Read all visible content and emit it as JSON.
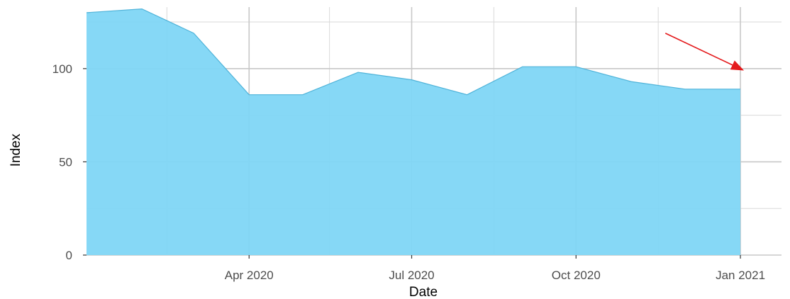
{
  "chart_data": {
    "type": "area",
    "title": "",
    "xlabel": "Date",
    "ylabel": "Index",
    "x_tick_labels": [
      "Apr 2020",
      "Jul 2020",
      "Oct 2020",
      "Jan 2021"
    ],
    "x_ticks": [
      "2020-04-01",
      "2020-07-01",
      "2020-10-01",
      "2021-01-01"
    ],
    "x_minor_ticks": [
      "2020-02-15",
      "2020-05-16",
      "2020-08-16",
      "2020-11-16"
    ],
    "xlim": [
      "2020-01-01",
      "2021-01-24"
    ],
    "y_ticks": [
      0,
      50,
      100
    ],
    "ylim": [
      0,
      133
    ],
    "grid": true,
    "fill_color": "#7fd6f5",
    "line_color": "#4fb3d9",
    "series": [
      {
        "x": [
          "2020-01-01",
          "2020-02-01",
          "2020-03-01",
          "2020-04-01",
          "2020-05-01",
          "2020-06-01",
          "2020-07-01",
          "2020-08-01",
          "2020-09-01",
          "2020-10-01",
          "2020-11-01",
          "2020-12-01",
          "2021-01-01"
        ],
        "values": [
          130,
          132,
          119,
          86,
          86,
          98,
          94,
          86,
          101,
          101,
          93,
          89,
          89
        ]
      }
    ],
    "annotations": [
      {
        "type": "arrow",
        "color": "#e41a1c",
        "from": [
          "2020-11-20",
          119
        ],
        "to": [
          "2021-01-03",
          99
        ]
      }
    ]
  }
}
